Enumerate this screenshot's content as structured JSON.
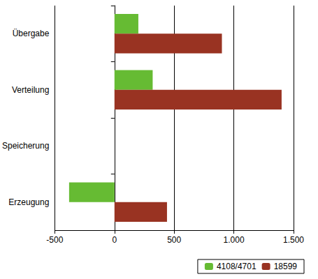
{
  "chart_data": {
    "type": "bar",
    "orientation": "horizontal",
    "categories": [
      "Erzeugung",
      "Speicherung",
      "Verteilung",
      "Übergabe"
    ],
    "series": [
      {
        "name": "4108/4701",
        "color": "#66bb33",
        "values": [
          -380,
          null,
          320,
          200
        ]
      },
      {
        "name": "18599",
        "color": "#993322",
        "values": [
          440,
          null,
          1400,
          900
        ]
      }
    ],
    "xlim": [
      -500,
      1500
    ],
    "xticks": [
      -500,
      0,
      500,
      {
        "value": 1000,
        "label": "1.000"
      },
      {
        "value": 1500,
        "label": "1.500"
      }
    ],
    "grid": true,
    "legend": "bottom"
  }
}
